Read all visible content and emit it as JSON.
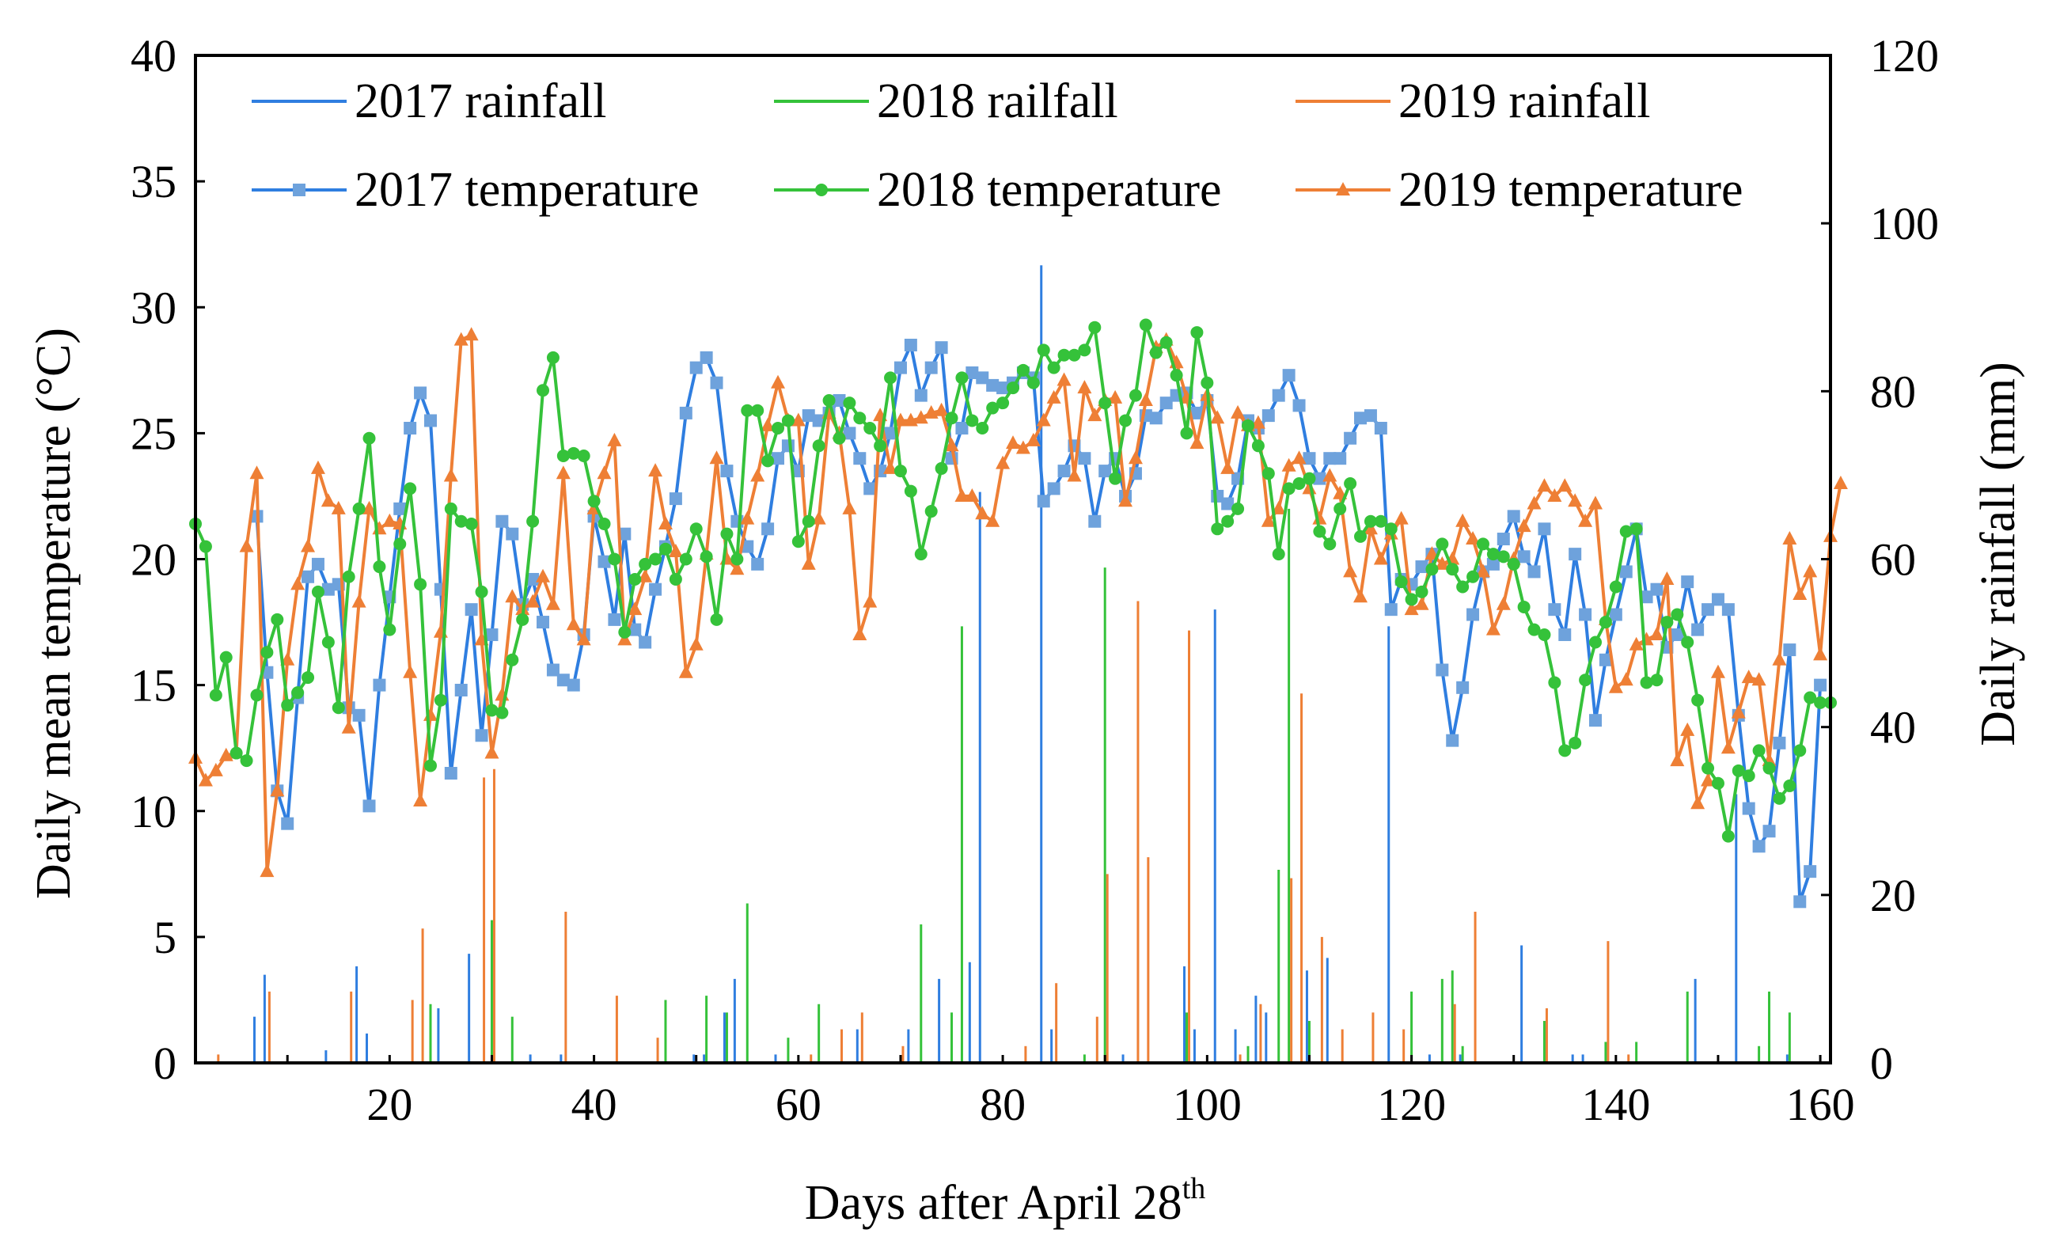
{
  "chart_data": {
    "type": "line",
    "title": "",
    "xlabel_main": "Days after April 28",
    "xlabel_sup": "th",
    "ylabel_left": "Daily mean temperature (°C)",
    "ylabel_right": "Daily rainfall (mm)",
    "xlim": [
      1,
      161
    ],
    "ylim_left": [
      0,
      40
    ],
    "ylim_right": [
      0,
      120
    ],
    "x_ticks": [
      20,
      40,
      60,
      80,
      100,
      120,
      140,
      160
    ],
    "y_left_ticks": [
      0,
      5,
      10,
      15,
      20,
      25,
      30,
      35,
      40
    ],
    "y_right_ticks": [
      0,
      20,
      40,
      60,
      80,
      100,
      120
    ],
    "colors": {
      "2017": "#2f7ee0",
      "2018": "#35c23a",
      "2019": "#ee7f35"
    },
    "legend": [
      {
        "label": "2017 rainfall",
        "year": "2017",
        "kind": "bar"
      },
      {
        "label": "2018 railfall",
        "year": "2018",
        "kind": "bar"
      },
      {
        "label": "2019 rainfall",
        "year": "2019",
        "kind": "bar"
      },
      {
        "label": "2017 temperature",
        "year": "2017",
        "kind": "line",
        "marker": "square"
      },
      {
        "label": "2018 temperature",
        "year": "2018",
        "kind": "line",
        "marker": "circle"
      },
      {
        "label": "2019 temperature",
        "year": "2019",
        "kind": "line",
        "marker": "triangle"
      }
    ],
    "temperature_series": [
      {
        "name": "2017 temperature",
        "year": "2017",
        "marker": "square",
        "x_start": 7,
        "values": [
          21.7,
          15.5,
          10.8,
          9.5,
          14.5,
          19.3,
          19.8,
          18.8,
          19.0,
          14.1,
          13.8,
          10.2,
          15.0,
          18.5,
          22.0,
          25.2,
          26.6,
          25.5,
          18.8,
          11.5,
          14.8,
          18.0,
          13.0,
          17.0,
          21.5,
          21.0,
          18.2,
          19.2,
          17.5,
          15.6,
          15.2,
          15.0,
          17.0,
          21.7,
          19.9,
          17.6,
          21.0,
          17.2,
          16.7,
          18.8,
          20.5,
          22.4,
          25.8,
          27.6,
          28.0,
          27.0,
          23.5,
          21.5,
          20.5,
          19.8,
          21.2,
          24.0,
          24.5,
          23.5,
          25.7,
          25.5,
          25.8,
          26.3,
          25.0,
          24.0,
          22.8,
          23.5,
          25.0,
          27.6,
          28.5,
          26.5,
          27.6,
          28.4,
          24.0,
          25.2,
          27.4,
          27.2,
          26.9,
          26.8,
          27.0,
          27.4,
          27.2,
          22.3,
          22.8,
          23.5,
          24.5,
          24.0,
          21.5,
          23.5,
          24.0,
          22.5,
          23.4,
          25.7,
          25.6,
          26.2,
          26.5,
          26.6,
          25.8,
          26.3,
          22.5,
          22.2,
          23.2,
          25.5,
          25.2,
          25.7,
          26.5,
          27.3,
          26.1,
          24.0,
          23.2,
          24.0,
          24.0,
          24.8,
          25.6,
          25.7,
          25.2,
          18.0,
          19.2,
          19.0,
          19.7,
          20.2,
          15.6,
          12.8,
          14.9,
          17.8,
          19.5,
          19.8,
          20.8,
          21.7,
          20.1,
          19.5,
          21.2,
          18.0,
          17.0,
          20.2,
          17.8,
          13.6,
          16.0,
          17.8,
          19.5,
          21.2,
          18.5,
          18.8,
          16.5,
          17.0,
          19.1,
          17.2,
          18.0,
          18.4,
          18.0,
          13.8,
          10.1,
          8.6,
          9.2,
          12.7,
          16.4,
          6.4,
          7.6,
          15.0
        ]
      },
      {
        "name": "2018 temperature",
        "year": "2018",
        "marker": "circle",
        "x_start": 1,
        "values": [
          21.4,
          20.5,
          14.6,
          16.1,
          12.3,
          12.0,
          14.6,
          16.3,
          17.6,
          14.2,
          14.7,
          15.3,
          18.7,
          16.7,
          14.1,
          19.3,
          22.0,
          24.8,
          19.7,
          17.2,
          20.6,
          22.8,
          19.0,
          11.8,
          14.4,
          22.0,
          21.5,
          21.4,
          18.7,
          14.0,
          13.9,
          16.0,
          17.6,
          21.5,
          26.7,
          28.0,
          24.1,
          24.2,
          24.1,
          22.3,
          21.4,
          20.0,
          17.1,
          19.2,
          19.8,
          20.0,
          20.4,
          19.2,
          20.0,
          21.2,
          20.1,
          17.6,
          21.0,
          20.0,
          25.9,
          25.9,
          23.9,
          25.2,
          25.5,
          20.7,
          21.5,
          24.5,
          26.3,
          24.8,
          26.2,
          25.6,
          25.2,
          24.5,
          27.2,
          23.5,
          22.7,
          20.2,
          21.9,
          23.6,
          25.6,
          27.2,
          25.5,
          25.2,
          26.0,
          26.2,
          26.8,
          27.5,
          27.0,
          28.3,
          27.6,
          28.1,
          28.1,
          28.3,
          29.2,
          26.2,
          23.2,
          25.5,
          26.5,
          29.3,
          28.2,
          28.6,
          27.3,
          25.0,
          29.0,
          27.0,
          21.2,
          21.5,
          22.0,
          25.3,
          24.5,
          23.4,
          20.2,
          22.8,
          23.0,
          23.2,
          21.1,
          20.6,
          22.0,
          23.0,
          20.9,
          21.5,
          21.5,
          21.2,
          19.1,
          18.4,
          18.7,
          19.6,
          20.6,
          19.6,
          18.9,
          19.3,
          20.6,
          20.2,
          20.1,
          19.8,
          18.1,
          17.2,
          17.0,
          15.1,
          12.4,
          12.7,
          15.2,
          16.7,
          17.5,
          18.9,
          21.1,
          21.2,
          15.1,
          15.2,
          17.5,
          17.8,
          16.7,
          14.4,
          11.7,
          11.1,
          9.0,
          11.6,
          11.4,
          12.4,
          11.7,
          10.5,
          11.0,
          12.4,
          14.5,
          14.3,
          14.3
        ]
      },
      {
        "name": "2019 temperature",
        "year": "2019",
        "marker": "triangle",
        "x_start": 1,
        "values": [
          12.1,
          11.2,
          11.6,
          12.2,
          12.3,
          20.5,
          23.4,
          7.6,
          10.8,
          16.0,
          19.0,
          20.5,
          23.6,
          22.3,
          22.0,
          13.3,
          18.3,
          22.0,
          21.2,
          21.5,
          21.4,
          15.5,
          10.4,
          13.8,
          17.1,
          23.3,
          28.7,
          28.9,
          16.8,
          12.3,
          14.6,
          18.5,
          18.0,
          18.3,
          19.3,
          18.2,
          23.4,
          17.4,
          16.8,
          22.0,
          23.4,
          24.7,
          16.8,
          18.0,
          19.3,
          23.5,
          21.4,
          20.3,
          15.5,
          16.6,
          20.2,
          24.0,
          20.0,
          19.6,
          21.6,
          23.3,
          25.3,
          27.0,
          25.5,
          25.5,
          19.8,
          21.6,
          25.8,
          25.0,
          22.0,
          17.0,
          18.3,
          25.7,
          23.6,
          25.5,
          25.5,
          25.6,
          25.8,
          25.9,
          24.5,
          22.5,
          22.5,
          21.8,
          21.5,
          23.8,
          24.6,
          24.4,
          24.7,
          25.5,
          26.4,
          27.1,
          23.3,
          26.8,
          25.7,
          26.3,
          26.4,
          22.3,
          24.0,
          26.3,
          28.4,
          28.7,
          27.8,
          26.4,
          24.6,
          26.5,
          25.6,
          23.6,
          25.8,
          25.3,
          25.4,
          21.5,
          22.0,
          23.7,
          24.0,
          22.8,
          21.6,
          23.3,
          22.6,
          19.5,
          18.5,
          21.2,
          20.0,
          21.0,
          21.6,
          18.0,
          18.2,
          20.2,
          19.8,
          20.0,
          21.5,
          20.8,
          19.5,
          17.2,
          18.2,
          20.0,
          21.3,
          22.2,
          22.9,
          22.5,
          22.9,
          22.3,
          21.5,
          22.2,
          17.6,
          14.9,
          15.2,
          16.6,
          16.8,
          17.0,
          19.2,
          12.0,
          13.2,
          10.3,
          11.2,
          15.5,
          12.5,
          13.9,
          15.3,
          15.2,
          12.0,
          16.0,
          20.8,
          18.6,
          19.5,
          16.2,
          20.9,
          23.0
        ]
      }
    ],
    "rainfall_series": [
      {
        "name": "2017 rainfall",
        "year": "2017",
        "bars": [
          [
            7,
            5.5
          ],
          [
            8,
            10.5
          ],
          [
            14,
            1.5
          ],
          [
            17,
            11.5
          ],
          [
            18,
            3.5
          ],
          [
            25,
            6.5
          ],
          [
            28,
            13
          ],
          [
            34,
            1
          ],
          [
            37,
            1
          ],
          [
            50,
            1
          ],
          [
            51,
            1
          ],
          [
            53,
            6
          ],
          [
            54,
            10
          ],
          [
            58,
            1
          ],
          [
            66,
            4
          ],
          [
            71,
            4
          ],
          [
            74,
            10
          ],
          [
            77,
            12
          ],
          [
            78,
            68
          ],
          [
            84,
            95
          ],
          [
            85,
            4
          ],
          [
            92,
            1
          ],
          [
            98,
            11.5
          ],
          [
            99,
            4
          ],
          [
            101,
            54
          ],
          [
            103,
            4
          ],
          [
            105,
            8
          ],
          [
            106,
            6
          ],
          [
            110,
            11
          ],
          [
            112,
            12.5
          ],
          [
            118,
            52
          ],
          [
            122,
            1
          ],
          [
            125,
            1
          ],
          [
            131,
            14
          ],
          [
            136,
            1
          ],
          [
            137,
            1
          ],
          [
            148,
            10
          ],
          [
            152,
            32
          ],
          [
            157,
            1
          ]
        ]
      },
      {
        "name": "2018 railfall",
        "year": "2018",
        "bars": [
          [
            24,
            7
          ],
          [
            30,
            17
          ],
          [
            32,
            5.5
          ],
          [
            47,
            7.5
          ],
          [
            51,
            8
          ],
          [
            53,
            6
          ],
          [
            55,
            19
          ],
          [
            59,
            3
          ],
          [
            62,
            7
          ],
          [
            72,
            16.5
          ],
          [
            75,
            6
          ],
          [
            76,
            52
          ],
          [
            88,
            1
          ],
          [
            90,
            59
          ],
          [
            98,
            6
          ],
          [
            104,
            2
          ],
          [
            107,
            23
          ],
          [
            108,
            66
          ],
          [
            110,
            5
          ],
          [
            120,
            8.5
          ],
          [
            123,
            10
          ],
          [
            124,
            11
          ],
          [
            125,
            2
          ],
          [
            133,
            5
          ],
          [
            139,
            2.5
          ],
          [
            142,
            2.5
          ],
          [
            147,
            8.5
          ],
          [
            154,
            2
          ],
          [
            155,
            8.5
          ],
          [
            157,
            6
          ]
        ]
      },
      {
        "name": "2019 rainfall",
        "year": "2019",
        "bars": [
          [
            3,
            1
          ],
          [
            8,
            8.5
          ],
          [
            16,
            8.5
          ],
          [
            22,
            7.5
          ],
          [
            23,
            16
          ],
          [
            29,
            34
          ],
          [
            30,
            35
          ],
          [
            37,
            18
          ],
          [
            42,
            8
          ],
          [
            46,
            3
          ],
          [
            61,
            1
          ],
          [
            64,
            4
          ],
          [
            66,
            6
          ],
          [
            70,
            2
          ],
          [
            82,
            2
          ],
          [
            85,
            9.5
          ],
          [
            89,
            5.5
          ],
          [
            90,
            22.5
          ],
          [
            93,
            55
          ],
          [
            94,
            24.5
          ],
          [
            98,
            51.5
          ],
          [
            103,
            1
          ],
          [
            105,
            7
          ],
          [
            108,
            22
          ],
          [
            109,
            44
          ],
          [
            111,
            15
          ],
          [
            113,
            4
          ],
          [
            116,
            6
          ],
          [
            119,
            4
          ],
          [
            124,
            7
          ],
          [
            126,
            18
          ],
          [
            133,
            6.5
          ],
          [
            139,
            14.5
          ],
          [
            141,
            1
          ]
        ]
      }
    ]
  }
}
